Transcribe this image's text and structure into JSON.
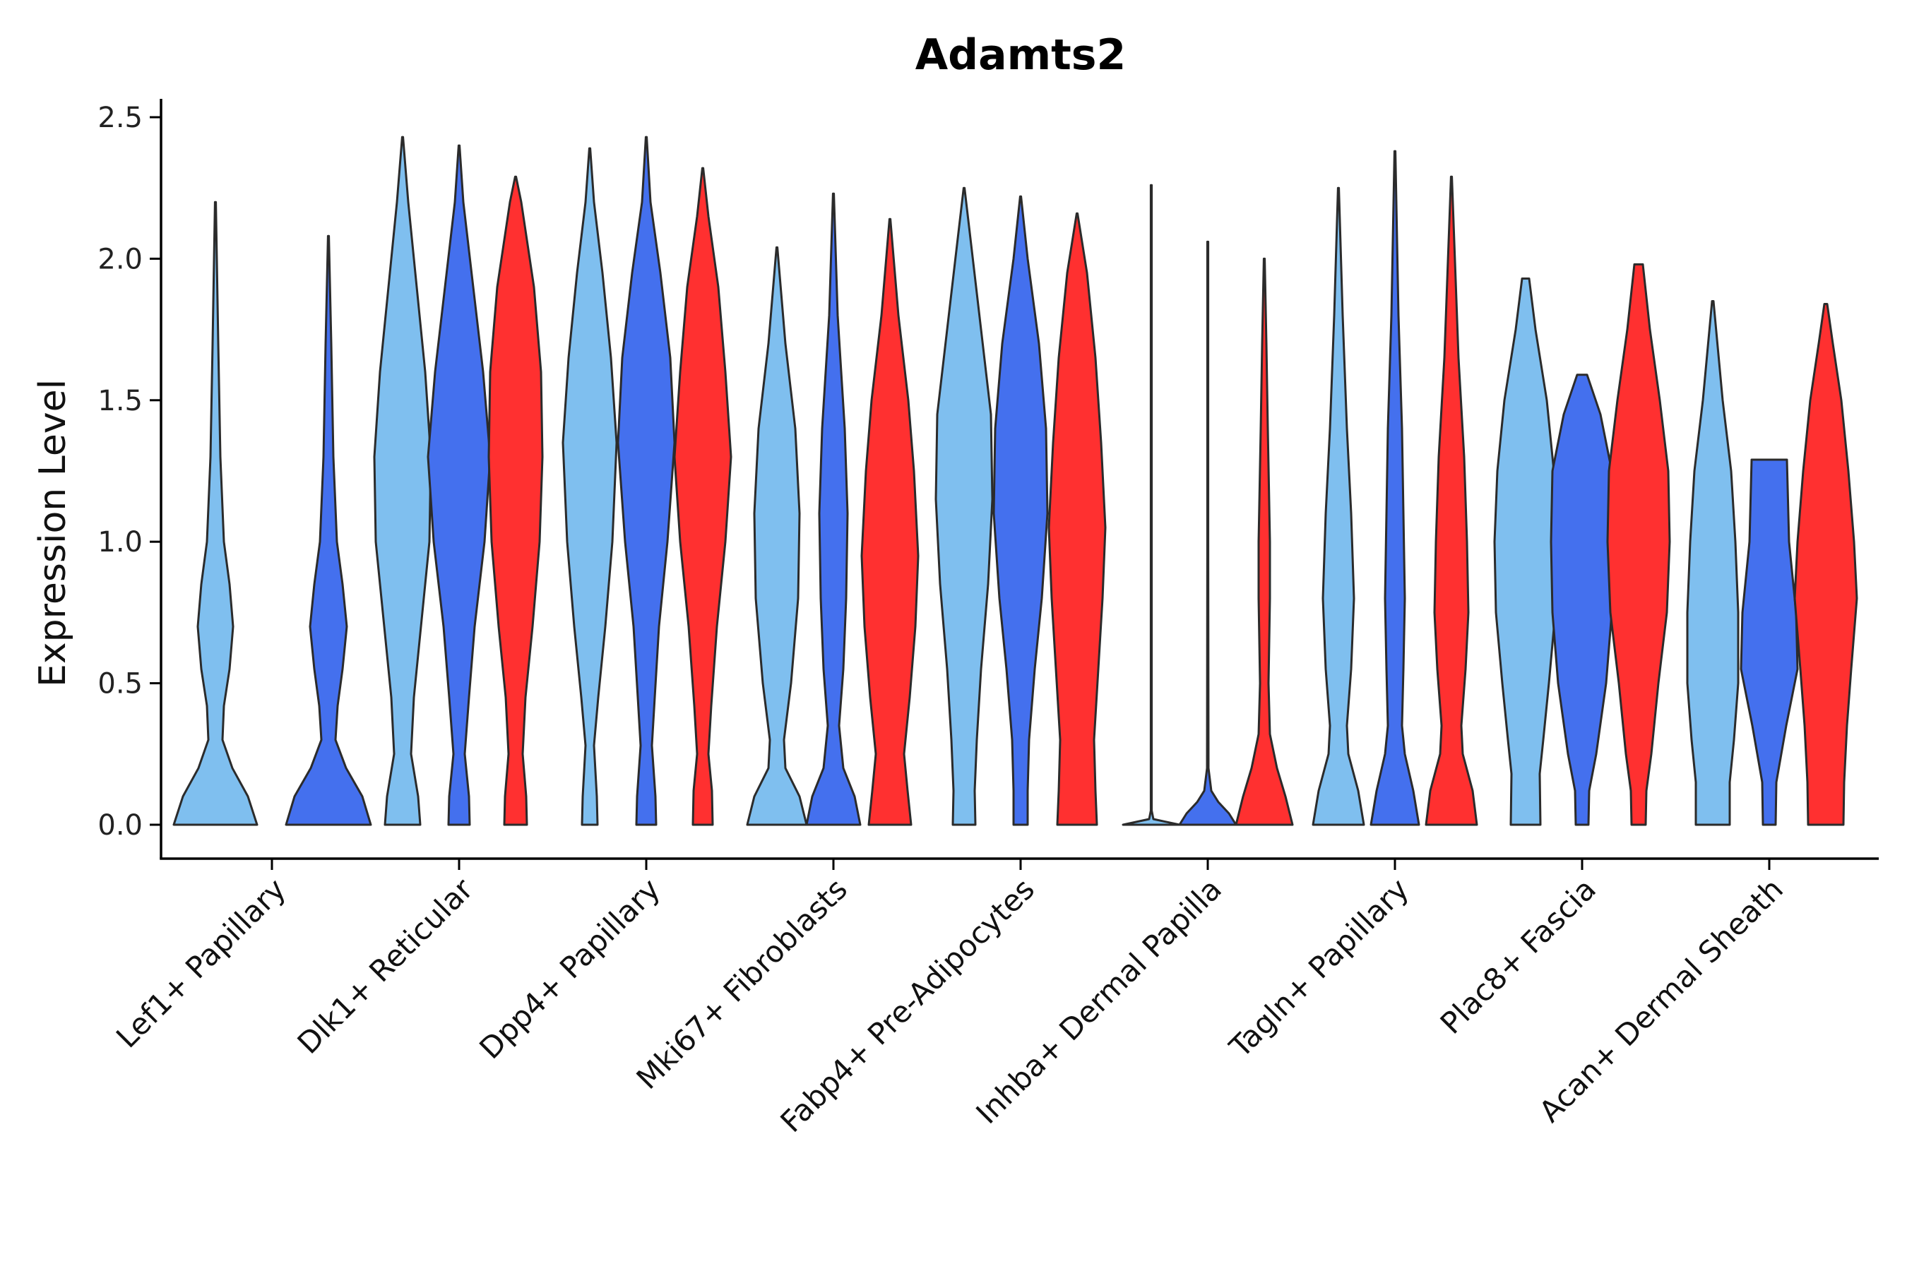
{
  "chart_data": {
    "type": "violin",
    "title": "Adamts2",
    "xlabel": "",
    "ylabel": "Expression Level",
    "ylim": [
      -0.12,
      2.56
    ],
    "yticks": [
      "0.0",
      "0.5",
      "1.0",
      "1.5",
      "2.0",
      "2.5"
    ],
    "ytick_values": [
      0,
      0.5,
      1.0,
      1.5,
      2.0,
      2.5
    ],
    "categories": [
      "Lef1+ Papillary",
      "Dlk1+ Reticular",
      "Dpp4+ Papillary",
      "Mki67+ Fibroblasts",
      "Fabp4+ Pre-Adipocytes",
      "Inhba+ Dermal Papilla",
      "Tagln+ Papillary",
      "Plac8+ Fascia",
      "Acan+ Dermal Sheath"
    ],
    "series_colors": [
      "#7fbfef",
      "#4470ee",
      "#ff3030"
    ],
    "violins": [
      {
        "category": 0,
        "slot": "left",
        "color": "#7fbfef",
        "max": 2.2,
        "profile": [
          [
            0,
            0.59
          ],
          [
            0.1,
            0.46
          ],
          [
            0.2,
            0.24
          ],
          [
            0.3,
            0.1
          ],
          [
            0.42,
            0.12
          ],
          [
            0.55,
            0.2
          ],
          [
            0.7,
            0.25
          ],
          [
            0.85,
            0.2
          ],
          [
            1.0,
            0.12
          ],
          [
            1.3,
            0.07
          ],
          [
            1.7,
            0.04
          ],
          [
            2.2,
            0
          ]
        ]
      },
      {
        "category": 0,
        "slot": "right",
        "color": "#4470ee",
        "max": 2.08,
        "profile": [
          [
            0,
            0.6
          ],
          [
            0.1,
            0.48
          ],
          [
            0.2,
            0.25
          ],
          [
            0.3,
            0.1
          ],
          [
            0.42,
            0.13
          ],
          [
            0.55,
            0.2
          ],
          [
            0.7,
            0.26
          ],
          [
            0.85,
            0.2
          ],
          [
            1.0,
            0.12
          ],
          [
            1.3,
            0.07
          ],
          [
            1.7,
            0.04
          ],
          [
            2.08,
            0
          ]
        ]
      },
      {
        "category": 1,
        "slot": "left",
        "color": "#7fbfef",
        "max": 2.43,
        "profile": [
          [
            0,
            0.25
          ],
          [
            0.1,
            0.22
          ],
          [
            0.25,
            0.12
          ],
          [
            0.45,
            0.16
          ],
          [
            0.7,
            0.26
          ],
          [
            1.0,
            0.38
          ],
          [
            1.3,
            0.4
          ],
          [
            1.6,
            0.32
          ],
          [
            1.9,
            0.2
          ],
          [
            2.2,
            0.08
          ],
          [
            2.43,
            0
          ]
        ]
      },
      {
        "category": 1,
        "slot": "center",
        "color": "#4470ee",
        "max": 2.4,
        "profile": [
          [
            0,
            0.15
          ],
          [
            0.1,
            0.14
          ],
          [
            0.25,
            0.08
          ],
          [
            0.45,
            0.14
          ],
          [
            0.7,
            0.22
          ],
          [
            1.0,
            0.36
          ],
          [
            1.3,
            0.44
          ],
          [
            1.6,
            0.34
          ],
          [
            1.9,
            0.2
          ],
          [
            2.2,
            0.06
          ],
          [
            2.4,
            0
          ]
        ]
      },
      {
        "category": 1,
        "slot": "right",
        "color": "#ff3030",
        "max": 2.29,
        "profile": [
          [
            0,
            0.16
          ],
          [
            0.1,
            0.15
          ],
          [
            0.25,
            0.1
          ],
          [
            0.45,
            0.14
          ],
          [
            0.7,
            0.24
          ],
          [
            1.0,
            0.34
          ],
          [
            1.3,
            0.38
          ],
          [
            1.6,
            0.36
          ],
          [
            1.9,
            0.26
          ],
          [
            2.2,
            0.08
          ],
          [
            2.29,
            0
          ]
        ]
      },
      {
        "category": 2,
        "slot": "left",
        "color": "#7fbfef",
        "max": 2.39,
        "profile": [
          [
            0,
            0.11
          ],
          [
            0.1,
            0.1
          ],
          [
            0.28,
            0.06
          ],
          [
            0.45,
            0.12
          ],
          [
            0.7,
            0.22
          ],
          [
            1.0,
            0.32
          ],
          [
            1.35,
            0.38
          ],
          [
            1.65,
            0.3
          ],
          [
            1.95,
            0.18
          ],
          [
            2.2,
            0.06
          ],
          [
            2.39,
            0
          ]
        ]
      },
      {
        "category": 2,
        "slot": "center",
        "color": "#4470ee",
        "max": 2.43,
        "profile": [
          [
            0,
            0.14
          ],
          [
            0.1,
            0.13
          ],
          [
            0.28,
            0.08
          ],
          [
            0.45,
            0.12
          ],
          [
            0.7,
            0.18
          ],
          [
            1.0,
            0.3
          ],
          [
            1.35,
            0.4
          ],
          [
            1.65,
            0.34
          ],
          [
            1.95,
            0.2
          ],
          [
            2.2,
            0.06
          ],
          [
            2.43,
            0
          ]
        ]
      },
      {
        "category": 2,
        "slot": "right",
        "color": "#ff3030",
        "max": 2.32,
        "profile": [
          [
            0,
            0.14
          ],
          [
            0.12,
            0.13
          ],
          [
            0.25,
            0.08
          ],
          [
            0.42,
            0.12
          ],
          [
            0.7,
            0.2
          ],
          [
            1.0,
            0.32
          ],
          [
            1.3,
            0.4
          ],
          [
            1.6,
            0.32
          ],
          [
            1.9,
            0.22
          ],
          [
            2.15,
            0.08
          ],
          [
            2.32,
            0
          ]
        ]
      },
      {
        "category": 3,
        "slot": "left",
        "color": "#7fbfef",
        "max": 2.04,
        "profile": [
          [
            0,
            0.42
          ],
          [
            0.1,
            0.32
          ],
          [
            0.2,
            0.12
          ],
          [
            0.3,
            0.1
          ],
          [
            0.5,
            0.2
          ],
          [
            0.8,
            0.3
          ],
          [
            1.1,
            0.32
          ],
          [
            1.4,
            0.26
          ],
          [
            1.7,
            0.12
          ],
          [
            2.04,
            0
          ]
        ]
      },
      {
        "category": 3,
        "slot": "center",
        "color": "#4470ee",
        "max": 2.23,
        "profile": [
          [
            0,
            0.38
          ],
          [
            0.1,
            0.3
          ],
          [
            0.2,
            0.14
          ],
          [
            0.35,
            0.08
          ],
          [
            0.55,
            0.14
          ],
          [
            0.8,
            0.18
          ],
          [
            1.1,
            0.2
          ],
          [
            1.4,
            0.16
          ],
          [
            1.8,
            0.06
          ],
          [
            2.23,
            0
          ]
        ]
      },
      {
        "category": 3,
        "slot": "right",
        "color": "#ff3030",
        "max": 2.14,
        "profile": [
          [
            0,
            0.3
          ],
          [
            0.12,
            0.25
          ],
          [
            0.25,
            0.2
          ],
          [
            0.45,
            0.28
          ],
          [
            0.7,
            0.36
          ],
          [
            0.95,
            0.4
          ],
          [
            1.25,
            0.34
          ],
          [
            1.5,
            0.26
          ],
          [
            1.8,
            0.12
          ],
          [
            2.14,
            0
          ]
        ]
      },
      {
        "category": 4,
        "slot": "left",
        "color": "#7fbfef",
        "max": 2.25,
        "profile": [
          [
            0,
            0.16
          ],
          [
            0.12,
            0.15
          ],
          [
            0.3,
            0.18
          ],
          [
            0.55,
            0.24
          ],
          [
            0.85,
            0.34
          ],
          [
            1.15,
            0.4
          ],
          [
            1.45,
            0.38
          ],
          [
            1.75,
            0.24
          ],
          [
            2.05,
            0.1
          ],
          [
            2.25,
            0
          ]
        ]
      },
      {
        "category": 4,
        "slot": "center",
        "color": "#4470ee",
        "max": 2.22,
        "profile": [
          [
            0,
            0.1
          ],
          [
            0.12,
            0.1
          ],
          [
            0.3,
            0.12
          ],
          [
            0.55,
            0.2
          ],
          [
            0.8,
            0.3
          ],
          [
            1.1,
            0.38
          ],
          [
            1.4,
            0.36
          ],
          [
            1.7,
            0.26
          ],
          [
            2.0,
            0.1
          ],
          [
            2.22,
            0
          ]
        ]
      },
      {
        "category": 4,
        "slot": "right",
        "color": "#ff3030",
        "max": 2.16,
        "profile": [
          [
            0,
            0.28
          ],
          [
            0.12,
            0.26
          ],
          [
            0.3,
            0.24
          ],
          [
            0.55,
            0.3
          ],
          [
            0.8,
            0.36
          ],
          [
            1.05,
            0.4
          ],
          [
            1.35,
            0.34
          ],
          [
            1.65,
            0.26
          ],
          [
            1.95,
            0.14
          ],
          [
            2.16,
            0
          ]
        ]
      },
      {
        "category": 5,
        "slot": "left",
        "color": "#7fbfef",
        "max": 2.26,
        "profile": [
          [
            0,
            0.4
          ],
          [
            0.02,
            0.03
          ],
          [
            0.05,
            0.006
          ],
          [
            0.3,
            0.004
          ],
          [
            1.0,
            0.003
          ],
          [
            2.26,
            0.002
          ]
        ]
      },
      {
        "category": 5,
        "slot": "center",
        "color": "#4470ee",
        "max": 2.06,
        "profile": [
          [
            0,
            0.4
          ],
          [
            0.04,
            0.3
          ],
          [
            0.08,
            0.15
          ],
          [
            0.12,
            0.05
          ],
          [
            0.2,
            0.01
          ],
          [
            1.0,
            0.005
          ],
          [
            2.06,
            0.002
          ]
        ]
      },
      {
        "category": 5,
        "slot": "right",
        "color": "#ff3030",
        "max": 2.0,
        "profile": [
          [
            0,
            0.4
          ],
          [
            0.1,
            0.3
          ],
          [
            0.2,
            0.18
          ],
          [
            0.32,
            0.08
          ],
          [
            0.5,
            0.06
          ],
          [
            0.8,
            0.08
          ],
          [
            1.0,
            0.08
          ],
          [
            1.4,
            0.05
          ],
          [
            1.7,
            0.03
          ],
          [
            2.0,
            0
          ]
        ]
      },
      {
        "category": 6,
        "slot": "left",
        "color": "#7fbfef",
        "max": 2.25,
        "profile": [
          [
            0,
            0.36
          ],
          [
            0.12,
            0.28
          ],
          [
            0.25,
            0.14
          ],
          [
            0.35,
            0.12
          ],
          [
            0.55,
            0.18
          ],
          [
            0.8,
            0.22
          ],
          [
            1.1,
            0.18
          ],
          [
            1.4,
            0.12
          ],
          [
            1.8,
            0.06
          ],
          [
            2.25,
            0
          ]
        ]
      },
      {
        "category": 6,
        "slot": "center",
        "color": "#4470ee",
        "max": 2.38,
        "profile": [
          [
            0,
            0.34
          ],
          [
            0.12,
            0.26
          ],
          [
            0.25,
            0.14
          ],
          [
            0.35,
            0.1
          ],
          [
            0.55,
            0.12
          ],
          [
            0.8,
            0.14
          ],
          [
            1.1,
            0.12
          ],
          [
            1.4,
            0.1
          ],
          [
            1.8,
            0.05
          ],
          [
            2.38,
            0
          ]
        ]
      },
      {
        "category": 6,
        "slot": "right",
        "color": "#ff3030",
        "max": 2.29,
        "profile": [
          [
            0,
            0.36
          ],
          [
            0.12,
            0.3
          ],
          [
            0.25,
            0.16
          ],
          [
            0.35,
            0.14
          ],
          [
            0.55,
            0.2
          ],
          [
            0.75,
            0.24
          ],
          [
            1.0,
            0.22
          ],
          [
            1.3,
            0.18
          ],
          [
            1.65,
            0.1
          ],
          [
            2.29,
            0
          ]
        ]
      },
      {
        "category": 7,
        "slot": "left",
        "color": "#7fbfef",
        "max": 1.93,
        "profile": [
          [
            0,
            0.21
          ],
          [
            0.18,
            0.2
          ],
          [
            0.3,
            0.25
          ],
          [
            0.5,
            0.33
          ],
          [
            0.75,
            0.42
          ],
          [
            1.0,
            0.44
          ],
          [
            1.25,
            0.4
          ],
          [
            1.5,
            0.3
          ],
          [
            1.75,
            0.14
          ],
          [
            1.93,
            0.05
          ]
        ]
      },
      {
        "category": 7,
        "slot": "center",
        "color": "#4470ee",
        "max": 1.59,
        "profile": [
          [
            0,
            0.09
          ],
          [
            0.12,
            0.1
          ],
          [
            0.25,
            0.2
          ],
          [
            0.5,
            0.34
          ],
          [
            0.75,
            0.42
          ],
          [
            1.0,
            0.44
          ],
          [
            1.25,
            0.42
          ],
          [
            1.45,
            0.26
          ],
          [
            1.59,
            0.07
          ]
        ]
      },
      {
        "category": 7,
        "slot": "right",
        "color": "#ff3030",
        "max": 1.98,
        "profile": [
          [
            0,
            0.1
          ],
          [
            0.12,
            0.11
          ],
          [
            0.25,
            0.18
          ],
          [
            0.5,
            0.28
          ],
          [
            0.75,
            0.4
          ],
          [
            1.0,
            0.44
          ],
          [
            1.25,
            0.42
          ],
          [
            1.5,
            0.3
          ],
          [
            1.75,
            0.16
          ],
          [
            1.98,
            0.06
          ]
        ]
      },
      {
        "category": 8,
        "slot": "left",
        "color": "#7fbfef",
        "max": 1.85,
        "profile": [
          [
            0,
            0.24
          ],
          [
            0.15,
            0.24
          ],
          [
            0.3,
            0.3
          ],
          [
            0.5,
            0.36
          ],
          [
            0.75,
            0.36
          ],
          [
            1.0,
            0.32
          ],
          [
            1.25,
            0.26
          ],
          [
            1.5,
            0.14
          ],
          [
            1.85,
            0.01
          ]
        ]
      },
      {
        "category": 8,
        "slot": "center",
        "color": "#4470ee",
        "max": 1.29,
        "profile": [
          [
            0,
            0.09
          ],
          [
            0.15,
            0.1
          ],
          [
            0.35,
            0.24
          ],
          [
            0.55,
            0.4
          ],
          [
            0.75,
            0.38
          ],
          [
            1.0,
            0.28
          ],
          [
            1.29,
            0.25
          ]
        ]
      },
      {
        "category": 8,
        "slot": "right",
        "color": "#ff3030",
        "max": 1.84,
        "profile": [
          [
            0,
            0.25
          ],
          [
            0.15,
            0.26
          ],
          [
            0.35,
            0.3
          ],
          [
            0.55,
            0.36
          ],
          [
            0.8,
            0.44
          ],
          [
            1.0,
            0.4
          ],
          [
            1.25,
            0.32
          ],
          [
            1.5,
            0.22
          ],
          [
            1.7,
            0.1
          ],
          [
            1.84,
            0.02
          ]
        ]
      }
    ]
  }
}
